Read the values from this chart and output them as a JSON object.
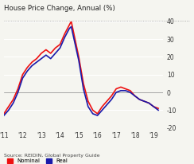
{
  "title": "House Price Change, Annual (%)",
  "source": "Source: REIDIN, Global Property Guide",
  "ylim": [
    -20,
    40
  ],
  "yticks": [
    -20,
    -10,
    0,
    10,
    20,
    30,
    40
  ],
  "xlabel_ticks": [
    "'11",
    "'12",
    "'13",
    "'14",
    "'15",
    "'16",
    "'17",
    "'18",
    "'19"
  ],
  "nominal_color": "#ee1111",
  "real_color": "#1a1aaa",
  "background_color": "#f5f5f0",
  "plot_bg": "#f5f5f0",
  "nominal_x": [
    2011.0,
    2011.25,
    2011.5,
    2011.75,
    2012.0,
    2012.25,
    2012.5,
    2012.75,
    2013.0,
    2013.25,
    2013.5,
    2013.75,
    2014.0,
    2014.25,
    2014.5,
    2014.6,
    2015.0,
    2015.25,
    2015.5,
    2015.75,
    2016.0,
    2016.25,
    2016.5,
    2016.75,
    2017.0,
    2017.25,
    2017.5,
    2017.75,
    2018.0,
    2018.25,
    2018.5,
    2018.75,
    2019.0,
    2019.25
  ],
  "nominal_y": [
    -12,
    -8,
    -4,
    2,
    10,
    14,
    17,
    19,
    22,
    24,
    22,
    25,
    27,
    33,
    38,
    40,
    20,
    5,
    -5,
    -10,
    -12,
    -8,
    -5,
    -2,
    2,
    3,
    2,
    1,
    -2,
    -4,
    -5,
    -6,
    -8,
    -9
  ],
  "real_x": [
    2011.0,
    2011.25,
    2011.5,
    2011.75,
    2012.0,
    2012.25,
    2012.5,
    2012.75,
    2013.0,
    2013.25,
    2013.5,
    2013.75,
    2014.0,
    2014.25,
    2014.5,
    2014.6,
    2015.0,
    2015.25,
    2015.5,
    2015.75,
    2016.0,
    2016.25,
    2016.5,
    2016.75,
    2017.0,
    2017.25,
    2017.5,
    2017.75,
    2018.0,
    2018.25,
    2018.5,
    2018.75,
    2019.0,
    2019.25
  ],
  "real_y": [
    -13,
    -10,
    -6,
    0,
    8,
    12,
    15,
    17,
    19,
    21,
    19,
    22,
    25,
    31,
    36,
    37,
    18,
    2,
    -8,
    -12,
    -13,
    -10,
    -7,
    -4,
    0,
    1,
    1,
    0,
    -2,
    -4,
    -5,
    -6,
    -8,
    -10
  ]
}
